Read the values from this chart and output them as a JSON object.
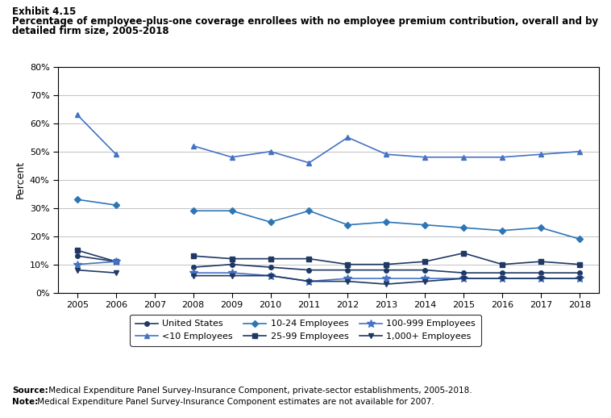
{
  "years": [
    2005,
    2006,
    2007,
    2008,
    2009,
    2010,
    2011,
    2012,
    2013,
    2014,
    2015,
    2016,
    2017,
    2018
  ],
  "series": [
    {
      "name": "United States",
      "values": [
        13,
        11,
        null,
        9,
        10,
        9,
        8,
        8,
        8,
        8,
        7,
        7,
        7,
        7
      ],
      "color": "#1F3864",
      "marker": "o",
      "markersize": 4,
      "linewidth": 1.2
    },
    {
      "name": "<10 Employees",
      "values": [
        63,
        49,
        null,
        52,
        48,
        50,
        46,
        55,
        49,
        48,
        48,
        48,
        49,
        50
      ],
      "color": "#4472C4",
      "marker": "^",
      "markersize": 5,
      "linewidth": 1.2
    },
    {
      "name": "10-24 Employees",
      "values": [
        33,
        31,
        null,
        29,
        29,
        25,
        29,
        24,
        25,
        24,
        23,
        22,
        23,
        19
      ],
      "color": "#2E75B6",
      "marker": "D",
      "markersize": 4,
      "linewidth": 1.2
    },
    {
      "name": "25-99 Employees",
      "values": [
        15,
        11,
        null,
        13,
        12,
        12,
        12,
        10,
        10,
        11,
        14,
        10,
        11,
        10
      ],
      "color": "#1F3864",
      "marker": "s",
      "markersize": 4,
      "linewidth": 1.2
    },
    {
      "name": "100-999 Employees",
      "values": [
        10,
        11,
        null,
        7,
        7,
        6,
        4,
        5,
        5,
        5,
        5,
        5,
        5,
        5
      ],
      "color": "#4472C4",
      "marker": "*",
      "markersize": 7,
      "linewidth": 1.2
    },
    {
      "name": "1,000+ Employees",
      "values": [
        8,
        7,
        null,
        6,
        6,
        6,
        4,
        4,
        3,
        4,
        5,
        5,
        5,
        5
      ],
      "color": "#1F3864",
      "marker": "v",
      "markersize": 4,
      "linewidth": 1.2
    }
  ],
  "title_exhibit": "Exhibit 4.15",
  "title_line1": "Percentage of employee-plus-one coverage enrollees with no employee premium contribution, overall and by",
  "title_line2": "detailed firm size, 2005-2018",
  "ylabel": "Percent",
  "ylim": [
    0,
    80
  ],
  "yticks": [
    0,
    10,
    20,
    30,
    40,
    50,
    60,
    70,
    80
  ],
  "source_bold": "Source:",
  "source_rest": " Medical Expenditure Panel Survey-Insurance Component, private-sector establishments, 2005-2018.",
  "note_bold": "Note:",
  "note_rest": " Medical Expenditure Panel Survey-Insurance Component estimates are not available for 2007."
}
